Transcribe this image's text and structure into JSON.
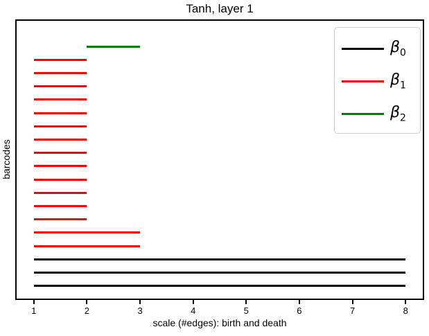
{
  "figure": {
    "title": "Tanh, layer 1",
    "xlabel": "scale (#edges): birth and death",
    "ylabel": "barcodes"
  },
  "chart_data": {
    "type": "bar",
    "subtype": "persistence-barcode",
    "title": "Tanh, layer 1",
    "xlabel": "scale (#edges): birth and death",
    "ylabel": "barcodes",
    "xlim": [
      0.65,
      8.35
    ],
    "x_ticks": [
      "1",
      "2",
      "3",
      "4",
      "5",
      "6",
      "7",
      "8"
    ],
    "grid": false,
    "background": "#ffffff",
    "series_colors": {
      "beta0": "#000000",
      "beta1": "#ff0000",
      "beta2": "#008000"
    },
    "legend": {
      "position": "upper right",
      "entries": [
        {
          "name": "beta0",
          "base": "β",
          "sub": "0",
          "color": "#000000"
        },
        {
          "name": "beta1",
          "base": "β",
          "sub": "1",
          "color": "#ff0000"
        },
        {
          "name": "beta2",
          "base": "β",
          "sub": "2",
          "color": "#008000"
        }
      ]
    },
    "bars": [
      {
        "series": "beta2",
        "birth": 2,
        "death": 3
      },
      {
        "series": "beta1",
        "birth": 1,
        "death": 2
      },
      {
        "series": "beta1",
        "birth": 1,
        "death": 2
      },
      {
        "series": "beta1",
        "birth": 1,
        "death": 2
      },
      {
        "series": "beta1",
        "birth": 1,
        "death": 2
      },
      {
        "series": "beta1",
        "birth": 1,
        "death": 2
      },
      {
        "series": "beta1",
        "birth": 1,
        "death": 2
      },
      {
        "series": "beta1",
        "birth": 1,
        "death": 2
      },
      {
        "series": "beta1",
        "birth": 1,
        "death": 2
      },
      {
        "series": "beta1",
        "birth": 1,
        "death": 2
      },
      {
        "series": "beta1",
        "birth": 1,
        "death": 2
      },
      {
        "series": "beta1",
        "birth": 1,
        "death": 2
      },
      {
        "series": "beta1",
        "birth": 1,
        "death": 2
      },
      {
        "series": "beta1",
        "birth": 1,
        "death": 2
      },
      {
        "series": "beta1",
        "birth": 1,
        "death": 3
      },
      {
        "series": "beta1",
        "birth": 1,
        "death": 3
      },
      {
        "series": "beta0",
        "birth": 1,
        "death": 8
      },
      {
        "series": "beta0",
        "birth": 1,
        "death": 8
      },
      {
        "series": "beta0",
        "birth": 1,
        "death": 8
      }
    ]
  }
}
